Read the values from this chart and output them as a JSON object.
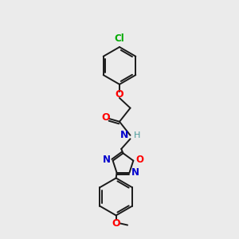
{
  "bg_color": "#ebebeb",
  "bond_color": "#1a1a1a",
  "bond_width": 1.4,
  "fig_size": [
    3.0,
    3.0
  ],
  "dpi": 100,
  "atom_colors": {
    "O": "#ff0000",
    "N": "#0000cd",
    "Cl": "#00aa00",
    "H": "#4a9a9a",
    "C": "#1a1a1a"
  },
  "xlim": [
    -1.2,
    1.2
  ],
  "ylim": [
    -4.8,
    1.8
  ]
}
